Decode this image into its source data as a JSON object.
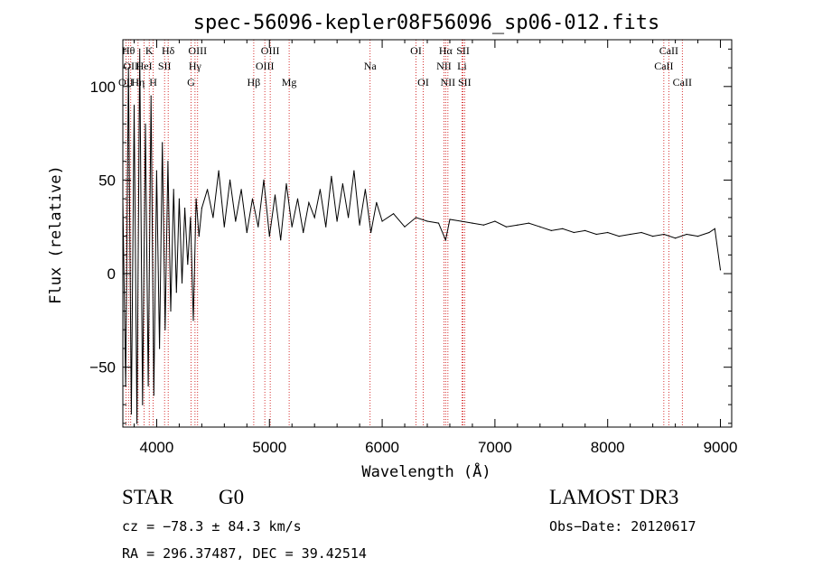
{
  "chart_data": {
    "type": "line",
    "title": "spec-56096-kepler08F56096_sp06-012.fits",
    "xlabel": "Wavelength (Å)",
    "ylabel": "Flux (relative)",
    "xlim": [
      3700,
      9100
    ],
    "ylim": [
      -82,
      125
    ],
    "xticks": [
      4000,
      5000,
      6000,
      7000,
      8000,
      9000
    ],
    "yticks": [
      100,
      50,
      0,
      -50
    ],
    "series": [
      {
        "name": "spectrum",
        "x": [
          3700,
          3725,
          3750,
          3775,
          3800,
          3825,
          3850,
          3875,
          3900,
          3925,
          3950,
          3975,
          4000,
          4025,
          4050,
          4075,
          4100,
          4125,
          4150,
          4175,
          4200,
          4225,
          4250,
          4275,
          4300,
          4325,
          4350,
          4375,
          4400,
          4450,
          4500,
          4550,
          4600,
          4650,
          4700,
          4750,
          4800,
          4850,
          4900,
          4950,
          5000,
          5050,
          5100,
          5150,
          5200,
          5250,
          5300,
          5350,
          5400,
          5450,
          5500,
          5550,
          5600,
          5650,
          5700,
          5750,
          5800,
          5850,
          5900,
          5950,
          6000,
          6100,
          6200,
          6300,
          6400,
          6500,
          6563,
          6600,
          6700,
          6800,
          6900,
          7000,
          7100,
          7200,
          7300,
          7400,
          7500,
          7600,
          7700,
          7800,
          7900,
          8000,
          8100,
          8200,
          8300,
          8400,
          8500,
          8600,
          8700,
          8800,
          8900,
          8950,
          9000
        ],
        "y": [
          40,
          -60,
          110,
          -75,
          90,
          -80,
          120,
          -70,
          80,
          -60,
          95,
          -65,
          55,
          -40,
          70,
          -30,
          60,
          -20,
          45,
          -10,
          40,
          -5,
          35,
          5,
          30,
          -25,
          40,
          20,
          35,
          45,
          30,
          55,
          25,
          50,
          28,
          45,
          22,
          40,
          25,
          50,
          20,
          42,
          18,
          48,
          25,
          40,
          22,
          38,
          30,
          45,
          25,
          52,
          28,
          48,
          30,
          55,
          26,
          45,
          22,
          38,
          28,
          32,
          25,
          30,
          28,
          27,
          18,
          29,
          28,
          27,
          26,
          28,
          25,
          26,
          27,
          25,
          23,
          24,
          22,
          23,
          21,
          22,
          20,
          21,
          22,
          20,
          21,
          19,
          21,
          20,
          22,
          24,
          2
        ]
      }
    ],
    "lines": [
      {
        "name": "OII",
        "wl": 3727,
        "row": 3
      },
      {
        "name": "Hθ",
        "wl": 3750,
        "row": 1
      },
      {
        "name": "OII",
        "wl": 3770,
        "row": 2
      },
      {
        "name": "Hη",
        "wl": 3835,
        "row": 3
      },
      {
        "name": "K",
        "wl": 3934,
        "row": 1
      },
      {
        "name": "HeI",
        "wl": 3889,
        "row": 2
      },
      {
        "name": "H",
        "wl": 3969,
        "row": 3
      },
      {
        "name": "SII",
        "wl": 4070,
        "row": 2
      },
      {
        "name": "Hδ",
        "wl": 4102,
        "row": 1
      },
      {
        "name": "Hγ",
        "wl": 4340,
        "row": 2
      },
      {
        "name": "G",
        "wl": 4305,
        "row": 3
      },
      {
        "name": "OIII",
        "wl": 4363,
        "row": 1
      },
      {
        "name": "Hβ",
        "wl": 4861,
        "row": 3
      },
      {
        "name": "OIII",
        "wl": 4959,
        "row": 2
      },
      {
        "name": "OIII",
        "wl": 5007,
        "row": 1
      },
      {
        "name": "Mg",
        "wl": 5175,
        "row": 3
      },
      {
        "name": "Na",
        "wl": 5893,
        "row": 2
      },
      {
        "name": "OI",
        "wl": 6300,
        "row": 1
      },
      {
        "name": "OI",
        "wl": 6364,
        "row": 3
      },
      {
        "name": "NII",
        "wl": 6548,
        "row": 2
      },
      {
        "name": "Hα",
        "wl": 6563,
        "row": 1
      },
      {
        "name": "NII",
        "wl": 6583,
        "row": 3
      },
      {
        "name": "Li",
        "wl": 6708,
        "row": 2
      },
      {
        "name": "SII",
        "wl": 6717,
        "row": 1
      },
      {
        "name": "SII",
        "wl": 6731,
        "row": 3
      },
      {
        "name": "CaII",
        "wl": 8498,
        "row": 2
      },
      {
        "name": "CaII",
        "wl": 8542,
        "row": 1
      },
      {
        "name": "CaII",
        "wl": 8662,
        "row": 3
      }
    ]
  },
  "info": {
    "class": "STAR",
    "subclass": "G0",
    "survey": "LAMOST DR3",
    "cz": "cz = −78.3 ± 84.3 km/s",
    "obs_date": "Obs−Date: 20120617",
    "radec": "RA = 296.37487, DEC =  39.42514"
  },
  "colors": {
    "line_marker": "#cc0000",
    "spectrum": "#000000"
  }
}
